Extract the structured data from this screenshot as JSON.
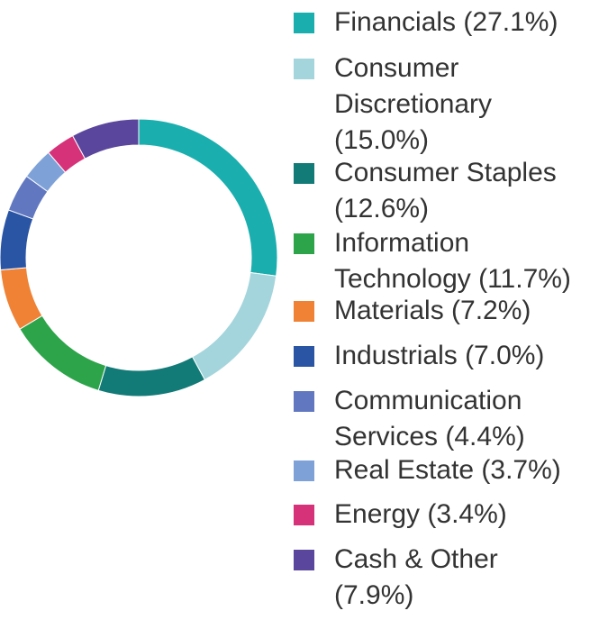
{
  "chart_data": {
    "type": "pie",
    "donut": true,
    "slices": [
      {
        "label": "Financials (27.1%)",
        "value": 27.1,
        "color": "#1AAFAE"
      },
      {
        "label": "Consumer Discretionary (15.0%)",
        "value": 15.0,
        "color": "#A4D5DC"
      },
      {
        "label": "Consumer Staples (12.6%)",
        "value": 12.6,
        "color": "#127A77"
      },
      {
        "label": "Information Technology (11.7%)",
        "value": 11.7,
        "color": "#2DA44A"
      },
      {
        "label": "Materials (7.2%)",
        "value": 7.2,
        "color": "#EF8234"
      },
      {
        "label": "Industrials (7.0%)",
        "value": 7.0,
        "color": "#2A54A4"
      },
      {
        "label": "Communication Services (4.4%)",
        "value": 4.4,
        "color": "#6178C1"
      },
      {
        "label": "Real Estate (3.7%)",
        "value": 3.7,
        "color": "#7EA2D8"
      },
      {
        "label": "Energy (3.4%)",
        "value": 3.4,
        "color": "#D6327A"
      },
      {
        "label": "Cash & Other (7.9%)",
        "value": 7.9,
        "color": "#5A469C"
      }
    ],
    "legend_position": "right"
  }
}
